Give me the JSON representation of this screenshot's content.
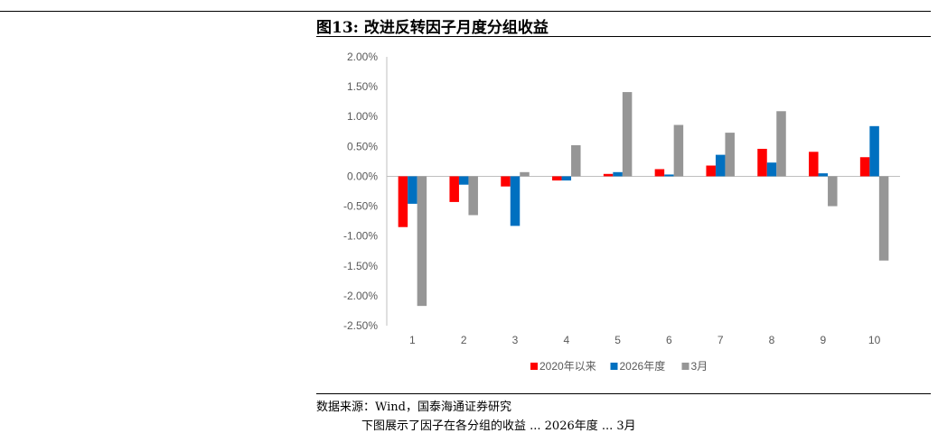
{
  "figure": {
    "title": "图13: 改进反转因子月度分组收益",
    "source": "数据来源：Wind，国泰海通证券研究",
    "caption_fragment": "下图展示了因子在各分组的收益 ... 2026年度 ... 3月"
  },
  "chart_data": {
    "type": "bar",
    "title": "",
    "xlabel": "",
    "ylabel": "",
    "categories": [
      "1",
      "2",
      "3",
      "4",
      "5",
      "6",
      "7",
      "8",
      "9",
      "10"
    ],
    "ylim": [
      -0.025,
      0.02
    ],
    "yticks": [
      0.02,
      0.015,
      0.01,
      0.005,
      0.0,
      -0.005,
      -0.01,
      -0.015,
      -0.02,
      -0.025
    ],
    "ytick_labels": [
      "2.00%",
      "1.50%",
      "1.00%",
      "0.50%",
      "0.00%",
      "-0.50%",
      "-1.00%",
      "-1.50%",
      "-2.00%",
      "-2.50%"
    ],
    "grid": false,
    "legend_position": "bottom",
    "series": [
      {
        "name": "2020年以来",
        "color": "#ff0000",
        "values": [
          -0.0085,
          -0.0043,
          -0.0017,
          -0.0007,
          0.0004,
          0.0012,
          0.0018,
          0.0046,
          0.0041,
          0.0032
        ]
      },
      {
        "name": "2026年度",
        "color": "#0070c0",
        "values": [
          -0.0046,
          -0.0014,
          -0.0083,
          -0.0007,
          0.0007,
          0.0003,
          0.0036,
          0.0023,
          0.0005,
          0.0084
        ]
      },
      {
        "name": "3月",
        "color": "#969696",
        "values": [
          -0.0217,
          -0.0065,
          0.0007,
          0.0052,
          0.0141,
          0.0086,
          0.0073,
          0.0109,
          -0.005,
          -0.0141
        ]
      }
    ]
  }
}
